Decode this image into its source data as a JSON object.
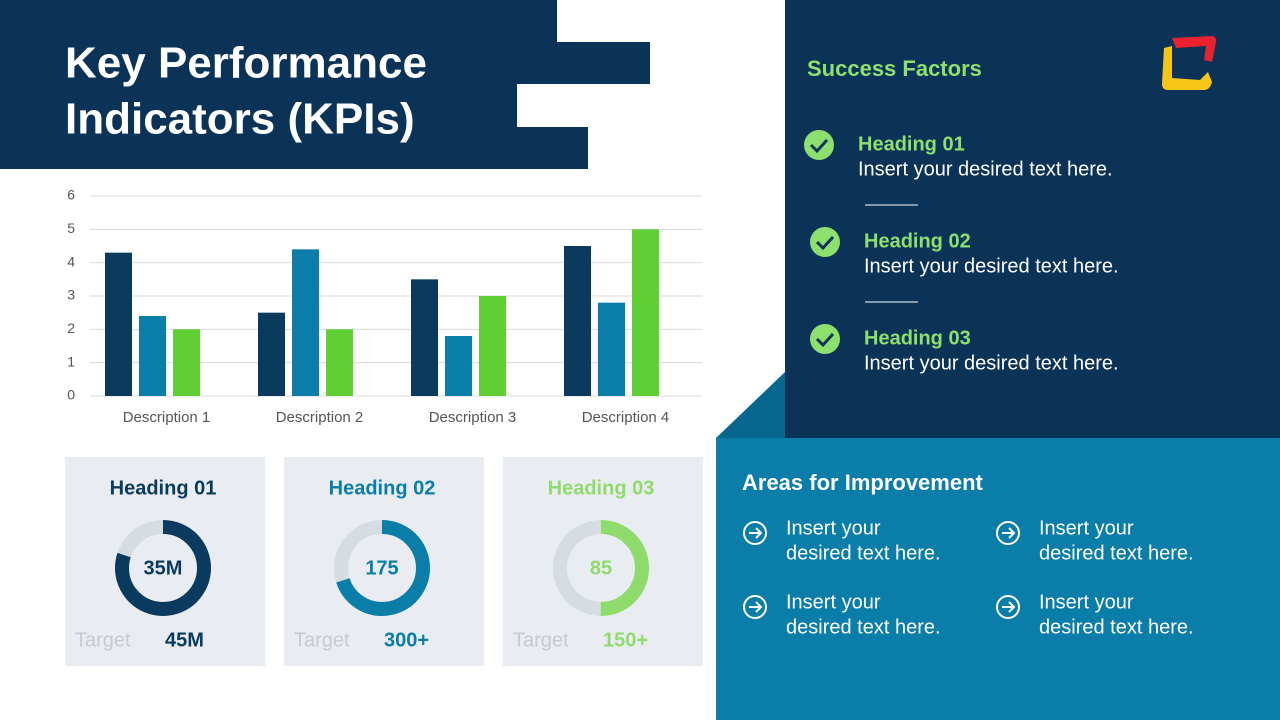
{
  "title_lines": [
    "Key Performance",
    "Indicators (KPIs)"
  ],
  "chart_data": {
    "type": "bar",
    "categories": [
      "Description 1",
      "Description 2",
      "Description 3",
      "Description 4"
    ],
    "series": [
      {
        "color": "#0b3a5f",
        "values": [
          4.3,
          2.5,
          3.5,
          4.5
        ]
      },
      {
        "color": "#0a7ea8",
        "values": [
          2.4,
          4.4,
          1.8,
          2.8
        ]
      },
      {
        "color": "#5fcf34",
        "values": [
          2.0,
          2.0,
          3.0,
          5.0
        ]
      }
    ],
    "ylim": [
      0,
      6
    ],
    "yticks": [
      0,
      1,
      2,
      3,
      4,
      5,
      6
    ],
    "grid": true
  },
  "gauges": [
    {
      "heading": "Heading 01",
      "value_label": "35M",
      "target": "Target",
      "target_value": "45M",
      "percent": 80,
      "color": "#0b3a5f"
    },
    {
      "heading": "Heading 02",
      "value_label": "175",
      "target": "Target",
      "target_value": "300+",
      "percent": 70,
      "color": "#0a7ea8"
    },
    {
      "heading": "Heading 03",
      "value_label": "85",
      "target": "Target",
      "target_value": "150+",
      "percent": 50,
      "color": "#8fdc6c"
    }
  ],
  "success_factors": {
    "title": "Success Factors",
    "items": [
      {
        "heading": "Heading 01",
        "text": "Insert your desired text here."
      },
      {
        "heading": "Heading 02",
        "text": "Insert your desired text here."
      },
      {
        "heading": "Heading 03",
        "text": "Insert your desired text here."
      }
    ]
  },
  "improvement": {
    "title": "Areas for Improvement",
    "items": [
      [
        "Insert your",
        "desired text here."
      ],
      [
        "Insert your",
        "desired text here."
      ],
      [
        "Insert your",
        "desired text here."
      ],
      [
        "Insert your",
        "desired text here."
      ]
    ]
  }
}
